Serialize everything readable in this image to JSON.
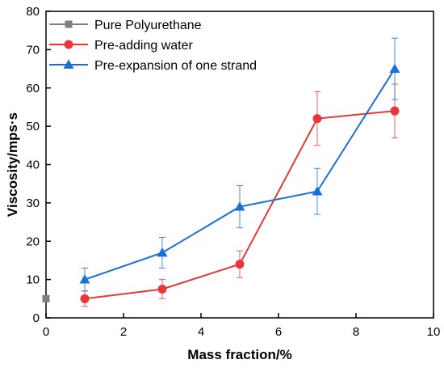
{
  "chart_data": {
    "type": "line",
    "title": "",
    "xlabel": "Mass fraction/%",
    "ylabel": "Viscosity/mps·s",
    "xlim": [
      0,
      10
    ],
    "ylim": [
      0,
      80
    ],
    "xticks": [
      0,
      2,
      4,
      6,
      8,
      10
    ],
    "yticks": [
      0,
      10,
      20,
      30,
      40,
      50,
      60,
      70,
      80
    ],
    "grid": false,
    "legend_position": "top-left",
    "series": [
      {
        "name": "Pure Polyurethane",
        "color": "#7f7f7f",
        "marker": "square",
        "x": [
          0
        ],
        "y": [
          5
        ],
        "err": [
          0
        ]
      },
      {
        "name": "Pre-adding water",
        "color": "#e8363b",
        "marker": "circle",
        "x": [
          1,
          3,
          5,
          7,
          9
        ],
        "y": [
          5,
          7.5,
          14,
          52,
          54
        ],
        "err": [
          2,
          2.5,
          3.5,
          7,
          7
        ]
      },
      {
        "name": "Pre-expansion of one strand",
        "color": "#1a6fd9",
        "marker": "triangle",
        "x": [
          1,
          3,
          5,
          7,
          9
        ],
        "y": [
          10,
          17,
          29,
          33,
          65
        ],
        "err": [
          3,
          4,
          5.5,
          6,
          8
        ]
      }
    ]
  }
}
